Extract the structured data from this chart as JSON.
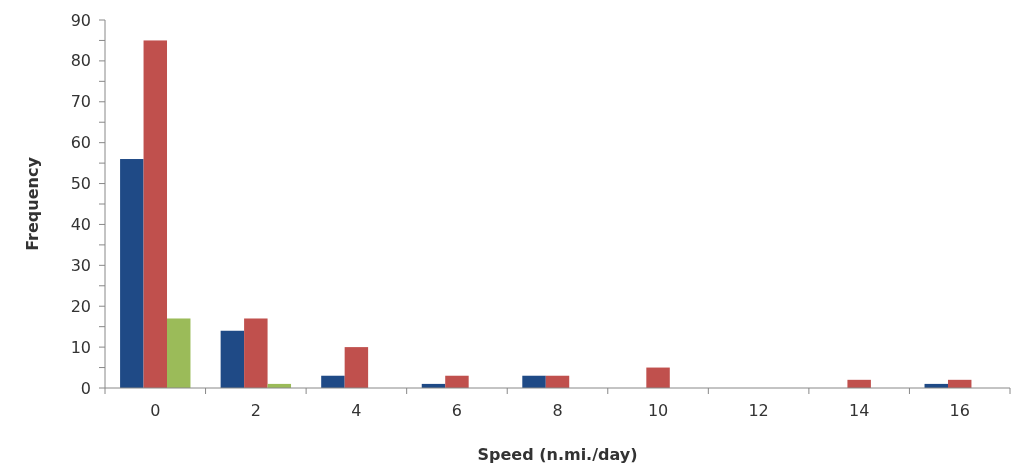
{
  "chart_data": {
    "type": "bar",
    "xlabel": "Speed (n.mi./day)",
    "ylabel": "Frequency",
    "categories": [
      "0",
      "2",
      "4",
      "6",
      "8",
      "10",
      "12",
      "14",
      "16"
    ],
    "series": [
      {
        "color": "#1f4a86",
        "values": [
          56,
          14,
          3,
          1,
          3,
          0,
          0,
          0,
          1
        ]
      },
      {
        "color": "#c0504d",
        "values": [
          85,
          17,
          10,
          3,
          3,
          5,
          0,
          2,
          2
        ]
      },
      {
        "color": "#9bbb59",
        "values": [
          17,
          1,
          0,
          0,
          0,
          0,
          0,
          0,
          0
        ]
      }
    ],
    "ylim": [
      0,
      90
    ],
    "yticks": [
      0,
      {
        "value": 5,
        "label": null
      },
      10,
      {
        "value": 15,
        "label": null
      },
      20,
      {
        "value": 25,
        "label": null
      },
      30,
      {
        "value": 35,
        "label": null
      },
      40,
      {
        "value": 45,
        "label": null
      },
      50,
      {
        "value": 55,
        "label": null
      },
      60,
      {
        "value": 65,
        "label": null
      },
      70,
      {
        "value": 75,
        "label": null
      },
      80,
      {
        "value": 85,
        "label": null
      },
      90
    ],
    "grid": false
  }
}
